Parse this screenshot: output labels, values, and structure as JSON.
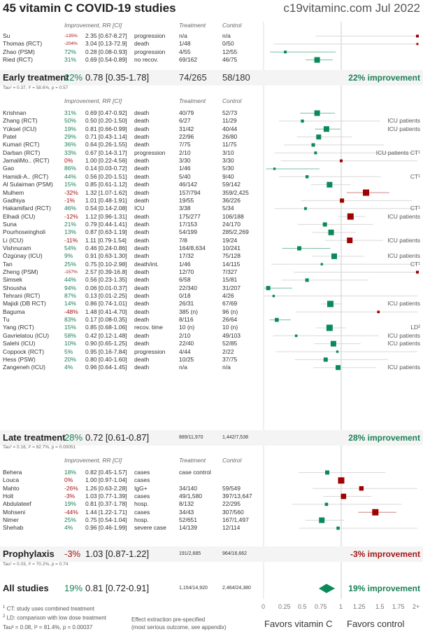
{
  "header": {
    "title": "45 vitamin C COVID-19 studies",
    "site": "c19vitaminc.com Jul 2022"
  },
  "columns": {
    "improvement": "Improvement, RR [CI]",
    "treatment": "Treatment",
    "control": "Control"
  },
  "chart_data": {
    "type": "forest",
    "title": "45 vitamin C COVID-19 studies",
    "x_axis": {
      "min": 0,
      "max": 2,
      "ticks": [
        "0",
        "0.25",
        "0.5",
        "0.75",
        "1",
        "1.25",
        "1.5",
        "1.75",
        "2+"
      ],
      "reference": 1
    },
    "favors_left": "Favors vitamin C",
    "favors_right": "Favors control",
    "groups": [
      {
        "name": "Early treatment",
        "studies": [
          {
            "name": "Su",
            "imp": "-135%",
            "rr": 2.35,
            "lo": 0.67,
            "hi": 8.27,
            "rr_text": "2.35 [0.67-8.27]",
            "outcome": "progression",
            "trt": "n/a",
            "ctl": "n/a",
            "weight": 1,
            "note": ""
          },
          {
            "name": "Thomas (RCT)",
            "imp": "-204%",
            "rr": 3.04,
            "lo": 0.13,
            "hi": 72.9,
            "rr_text": "3.04 [0.13-72.9]",
            "outcome": "death",
            "trt": "1/48",
            "ctl": "0/50",
            "weight": 0.5,
            "note": ""
          },
          {
            "name": "Zhao (PSM)",
            "imp": "72%",
            "rr": 0.28,
            "lo": 0.08,
            "hi": 0.93,
            "rr_text": "0.28 [0.08-0.93]",
            "outcome": "progression",
            "trt": "4/55",
            "ctl": "12/55",
            "weight": 1,
            "note": ""
          },
          {
            "name": "Ried (RCT)",
            "imp": "31%",
            "rr": 0.69,
            "lo": 0.54,
            "hi": 0.89,
            "rr_text": "0.69 [0.54-0.89]",
            "outcome": "no recov.",
            "trt": "69/162",
            "ctl": "46/75",
            "weight": 3,
            "note": ""
          }
        ],
        "summary": {
          "imp": "22%",
          "rr": 0.78,
          "lo": 0.35,
          "hi": 1.78,
          "rr_text": "0.78 [0.35-1.78]",
          "trt": "74/265",
          "ctl": "58/180",
          "label": "22% improvement",
          "small_counts": false
        },
        "tau": "Tau² = 0.37, I² = 58.6%, p = 0.57"
      },
      {
        "name": "Late treatment",
        "studies": [
          {
            "name": "Krishnan",
            "imp": "31%",
            "rr": 0.69,
            "lo": 0.47,
            "hi": 0.92,
            "rr_text": "0.69 [0.47-0.92]",
            "outcome": "death",
            "trt": "40/79",
            "ctl": "52/73",
            "weight": 3,
            "note": ""
          },
          {
            "name": "Zhang (RCT)",
            "imp": "50%",
            "rr": 0.5,
            "lo": 0.2,
            "hi": 1.5,
            "rr_text": "0.50 [0.20-1.50]",
            "outcome": "death",
            "trt": "6/27",
            "ctl": "11/29",
            "weight": 1.2,
            "note": "ICU patients"
          },
          {
            "name": "Yüksel (ICU)",
            "imp": "19%",
            "rr": 0.81,
            "lo": 0.66,
            "hi": 0.99,
            "rr_text": "0.81 [0.66-0.99]",
            "outcome": "death",
            "trt": "31/42",
            "ctl": "40/44",
            "weight": 3,
            "note": "ICU patients"
          },
          {
            "name": "Patel",
            "imp": "29%",
            "rr": 0.71,
            "lo": 0.43,
            "hi": 1.14,
            "rr_text": "0.71 [0.43-1.14]",
            "outcome": "death",
            "trt": "22/96",
            "ctl": "26/80",
            "weight": 2.5,
            "note": ""
          },
          {
            "name": "Kumari (RCT)",
            "imp": "36%",
            "rr": 0.64,
            "lo": 0.26,
            "hi": 1.55,
            "rr_text": "0.64 [0.26-1.55]",
            "outcome": "death",
            "trt": "7/75",
            "ctl": "11/75",
            "weight": 1.5,
            "note": ""
          },
          {
            "name": "Darban (RCT)",
            "imp": "33%",
            "rr": 0.67,
            "lo": 0.14,
            "hi": 3.17,
            "rr_text": "0.67 [0.14-3.17]",
            "outcome": "progression",
            "trt": "2/10",
            "ctl": "3/10",
            "weight": 1,
            "note": "ICU patients CT¹"
          },
          {
            "name": "JamaliMo.. (RCT)",
            "imp": "0%",
            "rr": 1.0,
            "lo": 0.22,
            "hi": 4.56,
            "rr_text": "1.00 [0.22-4.56]",
            "outcome": "death",
            "trt": "3/30",
            "ctl": "3/30",
            "weight": 1,
            "note": ""
          },
          {
            "name": "Gao",
            "imp": "86%",
            "rr": 0.14,
            "lo": 0.03,
            "hi": 0.72,
            "rr_text": "0.14 [0.03-0.72]",
            "outcome": "death",
            "trt": "1/46",
            "ctl": "5/30",
            "weight": 0.7,
            "note": ""
          },
          {
            "name": "Hamidi-A.. (RCT)",
            "imp": "44%",
            "rr": 0.56,
            "lo": 0.2,
            "hi": 1.51,
            "rr_text": "0.56 [0.20-1.51]",
            "outcome": "death",
            "trt": "5/40",
            "ctl": "9/40",
            "weight": 1.2,
            "note": "CT¹"
          },
          {
            "name": "Al Sulaiman (PSM)",
            "imp": "15%",
            "rr": 0.85,
            "lo": 0.61,
            "hi": 1.12,
            "rr_text": "0.85 [0.61-1.12]",
            "outcome": "death",
            "trt": "46/142",
            "ctl": "59/142",
            "weight": 3,
            "note": ""
          },
          {
            "name": "Mulhem",
            "imp": "-32%",
            "rr": 1.32,
            "lo": 1.07,
            "hi": 1.62,
            "rr_text": "1.32 [1.07-1.62]",
            "outcome": "death",
            "trt": "157/794",
            "ctl": "359/2,425",
            "weight": 3.5,
            "note": ""
          },
          {
            "name": "Gadhiya",
            "imp": "-1%",
            "rr": 1.01,
            "lo": 0.48,
            "hi": 1.91,
            "rr_text": "1.01 [0.48-1.91]",
            "outcome": "death",
            "trt": "19/55",
            "ctl": "36/226",
            "weight": 2,
            "note": ""
          },
          {
            "name": "Hakamifard (RCT)",
            "imp": "46%",
            "rr": 0.54,
            "lo": 0.14,
            "hi": 2.08,
            "rr_text": "0.54 [0.14-2.08]",
            "outcome": "ICU",
            "trt": "3/38",
            "ctl": "5/34",
            "weight": 1,
            "note": "CT¹"
          },
          {
            "name": "Elhadi (ICU)",
            "imp": "-12%",
            "rr": 1.12,
            "lo": 0.96,
            "hi": 1.31,
            "rr_text": "1.12 [0.96-1.31]",
            "outcome": "death",
            "trt": "175/277",
            "ctl": "106/188",
            "weight": 3.5,
            "note": "ICU patients"
          },
          {
            "name": "Suna",
            "imp": "21%",
            "rr": 0.79,
            "lo": 0.44,
            "hi": 1.41,
            "rr_text": "0.79 [0.44-1.41]",
            "outcome": "death",
            "trt": "17/153",
            "ctl": "24/170",
            "weight": 2,
            "note": ""
          },
          {
            "name": "Pourhoseingholi",
            "imp": "13%",
            "rr": 0.87,
            "lo": 0.63,
            "hi": 1.19,
            "rr_text": "0.87 [0.63-1.19]",
            "outcome": "death",
            "trt": "54/199",
            "ctl": "285/2,269",
            "weight": 3,
            "note": ""
          },
          {
            "name": "Li (ICU)",
            "imp": "-11%",
            "rr": 1.11,
            "lo": 0.79,
            "hi": 1.54,
            "rr_text": "1.11 [0.79-1.54]",
            "outcome": "death",
            "trt": "7/8",
            "ctl": "19/24",
            "weight": 3,
            "note": "ICU patients"
          },
          {
            "name": "Vishnuram",
            "imp": "54%",
            "rr": 0.46,
            "lo": 0.24,
            "hi": 0.86,
            "rr_text": "0.46 [0.24-0.86]",
            "outcome": "death",
            "trt": "164/8,634",
            "ctl": "10/241",
            "weight": 2,
            "note": ""
          },
          {
            "name": "Özgünay (ICU)",
            "imp": "9%",
            "rr": 0.91,
            "lo": 0.63,
            "hi": 1.3,
            "rr_text": "0.91 [0.63-1.30]",
            "outcome": "death",
            "trt": "17/32",
            "ctl": "75/128",
            "weight": 3,
            "note": "ICU patients"
          },
          {
            "name": "Tan",
            "imp": "25%",
            "rr": 0.75,
            "lo": 0.1,
            "hi": 2.98,
            "rr_text": "0.75 [0.10-2.98]",
            "outcome": "death/int.",
            "trt": "1/46",
            "ctl": "14/115",
            "weight": 0.7,
            "note": "CT¹"
          },
          {
            "name": "Zheng (PSM)",
            "imp": "-157%",
            "rr": 2.57,
            "lo": 0.39,
            "hi": 16.8,
            "rr_text": "2.57 [0.39-16.8]",
            "outcome": "death",
            "trt": "12/70",
            "ctl": "7/327",
            "weight": 1,
            "note": ""
          },
          {
            "name": "Simsek",
            "imp": "44%",
            "rr": 0.56,
            "lo": 0.23,
            "hi": 1.35,
            "rr_text": "0.56 [0.23-1.35]",
            "outcome": "death",
            "trt": "6/58",
            "ctl": "15/81",
            "weight": 1.5,
            "note": ""
          },
          {
            "name": "Shousha",
            "imp": "94%",
            "rr": 0.06,
            "lo": 0.01,
            "hi": 0.37,
            "rr_text": "0.06 [0.01-0.37]",
            "outcome": "death",
            "trt": "22/340",
            "ctl": "31/207",
            "weight": 2,
            "note": ""
          },
          {
            "name": "Tehrani (RCT)",
            "imp": "87%",
            "rr": 0.13,
            "lo": 0.01,
            "hi": 2.25,
            "rr_text": "0.13 [0.01-2.25]",
            "outcome": "death",
            "trt": "0/18",
            "ctl": "4/26",
            "weight": 0.7,
            "note": ""
          },
          {
            "name": "Majidi (DB RCT)",
            "imp": "14%",
            "rr": 0.86,
            "lo": 0.74,
            "hi": 1.01,
            "rr_text": "0.86 [0.74-1.01]",
            "outcome": "death",
            "trt": "26/31",
            "ctl": "67/69",
            "weight": 3.5,
            "note": "ICU patients"
          },
          {
            "name": "Baguma",
            "imp": "-48%",
            "rr": 1.48,
            "lo": 0.41,
            "hi": 4.7,
            "rr_text": "1.48 [0.41-4.70]",
            "outcome": "death",
            "trt": "385 (n)",
            "ctl": "96 (n)",
            "weight": 0.8,
            "note": ""
          },
          {
            "name": "Tu",
            "imp": "83%",
            "rr": 0.17,
            "lo": 0.08,
            "hi": 0.35,
            "rr_text": "0.17 [0.08-0.35]",
            "outcome": "death",
            "trt": "8/116",
            "ctl": "26/64",
            "weight": 1.8,
            "note": ""
          },
          {
            "name": "Yang (RCT)",
            "imp": "15%",
            "rr": 0.85,
            "lo": 0.68,
            "hi": 1.06,
            "rr_text": "0.85 [0.68-1.06]",
            "outcome": "recov. time",
            "trt": "10 (n)",
            "ctl": "10 (n)",
            "weight": 3.5,
            "note": "LD²"
          },
          {
            "name": "Gavrielatou (ICU)",
            "imp": "58%",
            "rr": 0.42,
            "lo": 0.12,
            "hi": 1.48,
            "rr_text": "0.42 [0.12-1.48]",
            "outcome": "death",
            "trt": "2/10",
            "ctl": "49/103",
            "weight": 0.8,
            "note": "ICU patients"
          },
          {
            "name": "Salehi (ICU)",
            "imp": "10%",
            "rr": 0.9,
            "lo": 0.65,
            "hi": 1.25,
            "rr_text": "0.90 [0.65-1.25]",
            "outcome": "death",
            "trt": "22/40",
            "ctl": "52/85",
            "weight": 3,
            "note": "ICU patients"
          },
          {
            "name": "Coppock (RCT)",
            "imp": "5%",
            "rr": 0.95,
            "lo": 0.16,
            "hi": 7.84,
            "rr_text": "0.95 [0.16-7.84]",
            "outcome": "progression",
            "trt": "4/44",
            "ctl": "2/22",
            "weight": 0.7,
            "note": ""
          },
          {
            "name": "Hess (PSW)",
            "imp": "20%",
            "rr": 0.8,
            "lo": 0.4,
            "hi": 1.6,
            "rr_text": "0.80 [0.40-1.60]",
            "outcome": "death",
            "trt": "10/25",
            "ctl": "37/75",
            "weight": 2,
            "note": ""
          },
          {
            "name": "Zangeneh (ICU)",
            "imp": "4%",
            "rr": 0.96,
            "lo": 0.64,
            "hi": 1.45,
            "rr_text": "0.96 [0.64-1.45]",
            "outcome": "death",
            "trt": "n/a",
            "ctl": "n/a",
            "weight": 2.5,
            "note": "ICU patients"
          }
        ],
        "summary": {
          "imp": "28%",
          "rr": 0.72,
          "lo": 0.61,
          "hi": 0.87,
          "rr_text": "0.72 [0.61-0.87]",
          "trt": "889/11,970",
          "ctl": "1,442/7,538",
          "label": "28% improvement",
          "small_counts": true
        },
        "tau": "Tau² = 0.16, I² = 82.7%, p = 0.00051"
      },
      {
        "name": "Prophylaxis",
        "studies": [
          {
            "name": "Behera",
            "imp": "18%",
            "rr": 0.82,
            "lo": 0.45,
            "hi": 1.57,
            "rr_text": "0.82 [0.45-1.57]",
            "outcome": "cases",
            "trt": "case control",
            "ctl": "",
            "weight": 2,
            "note": ""
          },
          {
            "name": "Louca",
            "imp": "0%",
            "rr": 1.0,
            "lo": 0.97,
            "hi": 1.04,
            "rr_text": "1.00 [0.97-1.04]",
            "outcome": "cases",
            "trt": "",
            "ctl": "",
            "weight": 3.5,
            "note": ""
          },
          {
            "name": "Mahto",
            "imp": "-26%",
            "rr": 1.26,
            "lo": 0.63,
            "hi": 2.28,
            "rr_text": "1.26 [0.63-2.28]",
            "outcome": "IgG+",
            "trt": "34/140",
            "ctl": "59/549",
            "weight": 2.2,
            "note": ""
          },
          {
            "name": "Holt",
            "imp": "-3%",
            "rr": 1.03,
            "lo": 0.77,
            "hi": 1.39,
            "rr_text": "1.03 [0.77-1.39]",
            "outcome": "cases",
            "trt": "49/1,580",
            "ctl": "397/13,647",
            "weight": 2.8,
            "note": ""
          },
          {
            "name": "Abdulateef",
            "imp": "19%",
            "rr": 0.81,
            "lo": 0.37,
            "hi": 1.78,
            "rr_text": "0.81 [0.37-1.78]",
            "outcome": "hosp.",
            "trt": "8/132",
            "ctl": "22/295",
            "weight": 1.3,
            "note": ""
          },
          {
            "name": "Mohseni",
            "imp": "-44%",
            "rr": 1.44,
            "lo": 1.22,
            "hi": 1.71,
            "rr_text": "1.44 [1.22-1.71]",
            "outcome": "cases",
            "trt": "34/43",
            "ctl": "307/560",
            "weight": 3.5,
            "note": ""
          },
          {
            "name": "Nimer",
            "imp": "25%",
            "rr": 0.75,
            "lo": 0.54,
            "hi": 1.04,
            "rr_text": "0.75 [0.54-1.04]",
            "outcome": "hosp.",
            "trt": "52/651",
            "ctl": "167/1,497",
            "weight": 3,
            "note": ""
          },
          {
            "name": "Shehab",
            "imp": "4%",
            "rr": 0.96,
            "lo": 0.46,
            "hi": 1.99,
            "rr_text": "0.96 [0.46-1.99]",
            "outcome": "severe case",
            "trt": "14/139",
            "ctl": "12/114",
            "weight": 1.3,
            "note": ""
          }
        ],
        "summary": {
          "imp": "-3%",
          "rr": 1.03,
          "lo": 0.87,
          "hi": 1.22,
          "rr_text": "1.03 [0.87-1.22]",
          "trt": "191/2,685",
          "ctl": "964/16,662",
          "label": "-3% improvement",
          "small_counts": true
        },
        "tau": "Tau² = 0.03, I² = 70.2%, p = 0.74"
      }
    ],
    "overall": {
      "name": "All studies",
      "imp": "19%",
      "rr": 0.81,
      "lo": 0.72,
      "hi": 0.91,
      "rr_text": "0.81 [0.72-0.91]",
      "trt": "1,154/14,920",
      "ctl": "2,464/24,380",
      "label": "19% improvement"
    }
  },
  "footnotes": {
    "ct": "CT: study uses combined treatment",
    "ld": "LD: comparison with low dose treatment",
    "tau": "Tau² = 0.08, I² = 81.4%, p = 0.00037",
    "extraction1": "Effect extraction pre-specified",
    "extraction2": "(most serious outcome, see appendix)"
  },
  "colors": {
    "positive": "#1b7f57",
    "negative": "#a31515",
    "marker_pos": "#0a8a5a",
    "marker_neg": "#a00000",
    "line": "#cccccc",
    "band": "#f4f4f4"
  }
}
